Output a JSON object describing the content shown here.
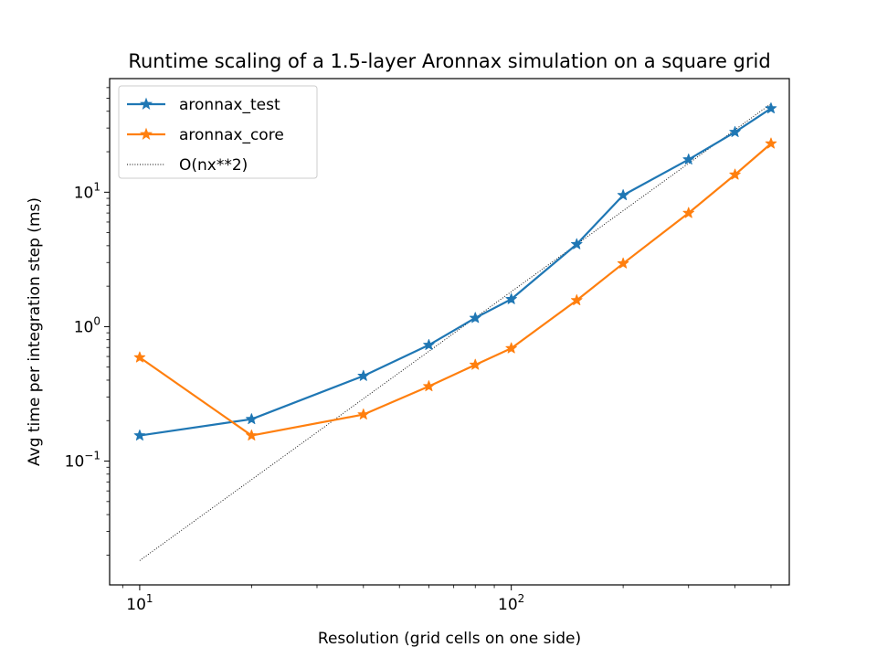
{
  "chart_data": {
    "type": "line",
    "title": "Runtime scaling of a 1.5-layer Aronnax simulation on a square grid",
    "xlabel": "Resolution (grid cells on one side)",
    "ylabel": "Avg time per integration step (ms)",
    "xscale": "log",
    "yscale": "log",
    "xlim": [
      8.3,
      560
    ],
    "ylim": [
      0.012,
      70
    ],
    "x_major_ticks": [
      {
        "value": 10,
        "base": "10",
        "exp": "1"
      },
      {
        "value": 100,
        "base": "10",
        "exp": "2"
      }
    ],
    "y_major_ticks": [
      {
        "value": 0.1,
        "base": "10",
        "exp": "−1"
      },
      {
        "value": 1,
        "base": "10",
        "exp": "0"
      },
      {
        "value": 10,
        "base": "10",
        "exp": "1"
      }
    ],
    "x_minor_ticks": [
      9,
      20,
      30,
      40,
      50,
      60,
      70,
      80,
      90,
      200,
      300,
      400,
      500
    ],
    "y_minor_ticks": [
      0.02,
      0.03,
      0.04,
      0.05,
      0.06,
      0.07,
      0.08,
      0.09,
      0.2,
      0.3,
      0.4,
      0.5,
      0.6,
      0.7,
      0.8,
      0.9,
      2,
      3,
      4,
      5,
      6,
      7,
      8,
      9,
      20,
      30,
      40,
      50,
      60
    ],
    "grid": false,
    "legend_position": "top-left",
    "series": [
      {
        "name": "aronnax_test",
        "color": "#1f77b4",
        "marker": "star",
        "style": "solid",
        "x": [
          10,
          20,
          40,
          60,
          80,
          100,
          150,
          200,
          300,
          400,
          500
        ],
        "y": [
          0.155,
          0.205,
          0.43,
          0.73,
          1.16,
          1.6,
          4.1,
          9.5,
          17.5,
          28,
          42
        ]
      },
      {
        "name": "aronnax_core",
        "color": "#ff7f0e",
        "marker": "star",
        "style": "solid",
        "x": [
          10,
          20,
          40,
          60,
          80,
          100,
          150,
          200,
          300,
          400,
          500
        ],
        "y": [
          0.59,
          0.155,
          0.222,
          0.36,
          0.52,
          0.69,
          1.57,
          2.95,
          7.0,
          13.5,
          23
        ]
      },
      {
        "name": "O(nx**2)",
        "color": "#000000",
        "marker": "none",
        "style": "dotted",
        "x": [
          10,
          500
        ],
        "y": [
          0.0182,
          45.5
        ]
      }
    ]
  }
}
